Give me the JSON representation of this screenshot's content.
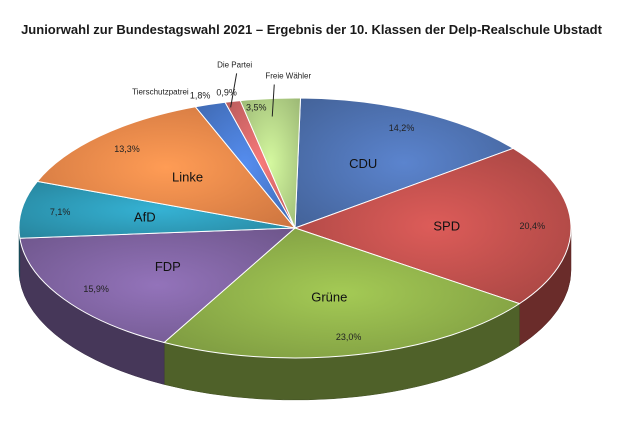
{
  "chart_data": {
    "type": "pie",
    "title": "Juniorwahl zur Bundestagswahl 2021 – Ergebnis der 10. Klassen der  Delp-Realschule Ubstadt",
    "slices": [
      {
        "label": "CDU",
        "value": 14.2,
        "display": "14,2%",
        "color": "#4f73b3"
      },
      {
        "label": "SPD",
        "value": 20.4,
        "display": "20,4%",
        "color": "#c0504d"
      },
      {
        "label": "Grüne",
        "value": 23.0,
        "display": "23,0%",
        "color": "#8fb04a"
      },
      {
        "label": "FDP",
        "value": 15.9,
        "display": "15,9%",
        "color": "#8064a2"
      },
      {
        "label": "AfD",
        "value": 7.1,
        "display": "7,1%",
        "color": "#2e9bb8"
      },
      {
        "label": "Linke",
        "value": 13.3,
        "display": "13,3%",
        "color": "#f0884a"
      },
      {
        "label": "Tierschutzpatrei",
        "value": 1.8,
        "display": "1,8%",
        "color": "#4a7bd0"
      },
      {
        "label": "Die Partei",
        "value": 0.9,
        "display": "0,9%",
        "color": "#d86a6a"
      },
      {
        "label": "Freie Wähler",
        "value": 3.5,
        "display": "3,5%",
        "color": "#b8d88a"
      }
    ]
  }
}
